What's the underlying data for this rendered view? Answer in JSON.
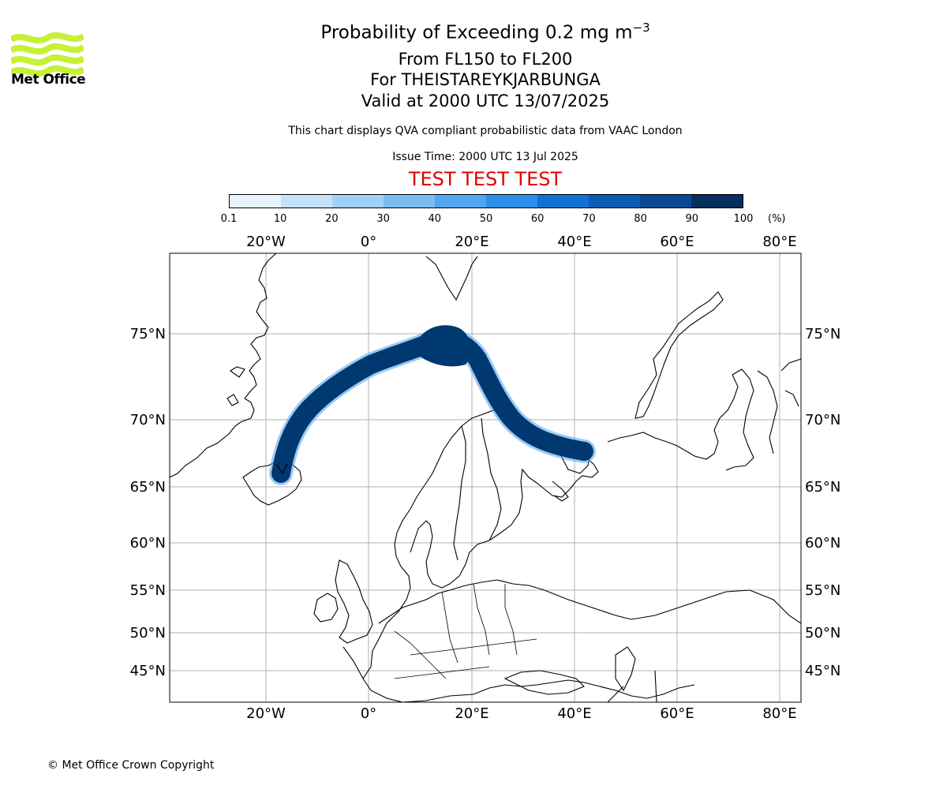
{
  "header": {
    "title_main": "Probability of Exceeding 0.2 mg m",
    "title_sup": "−3",
    "line2": "From FL150 to FL200",
    "line3": "For THEISTAREYKJARBUNGA",
    "line4": "Valid at 2000 UTC 13/07/2025",
    "note": "This chart displays QVA compliant probabilistic data from VAAC London",
    "issue_time": "Issue Time: 2000 UTC 13 Jul 2025",
    "test_banner": "TEST TEST TEST"
  },
  "logo": {
    "text": "Met Office",
    "icon": "met-office-wave-logo",
    "color": "#c6f135"
  },
  "colorbar": {
    "ticks": [
      "0.1",
      "10",
      "20",
      "30",
      "40",
      "50",
      "60",
      "70",
      "80",
      "90",
      "100"
    ],
    "unit": "(%)",
    "colors": [
      "#e8f3fd",
      "#c6e2fb",
      "#a3d0f7",
      "#7cbcf3",
      "#52a6f0",
      "#2a8fea",
      "#1071d4",
      "#0b5db5",
      "#084a92",
      "#062f5e"
    ]
  },
  "map": {
    "lon_labels_top": [
      "20°W",
      "0°",
      "20°E",
      "40°E",
      "60°E",
      "80°E"
    ],
    "lon_labels_bottom": [
      "20°W",
      "0°",
      "20°E",
      "40°E",
      "60°E",
      "80°E"
    ],
    "lat_labels": [
      "75°N",
      "70°N",
      "65°N",
      "60°N",
      "55°N",
      "50°N",
      "45°N"
    ],
    "plume_color": "#00396f",
    "gridline_color": "#b0b0b0",
    "coastline_color": "#000000"
  },
  "footer": {
    "copyright": "© Met Office Crown Copyright"
  }
}
